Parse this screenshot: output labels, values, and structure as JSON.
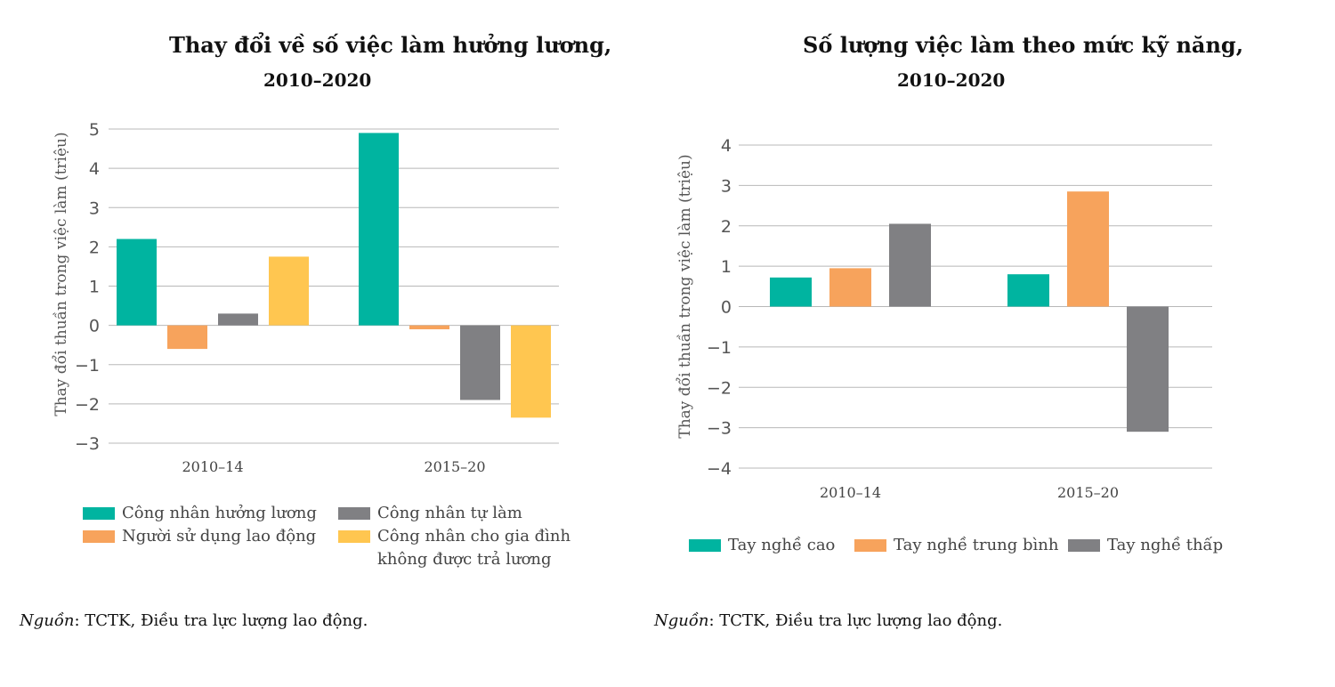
{
  "chart_data": [
    {
      "type": "bar",
      "title": "Thay đổi về số việc làm hưởng lương,",
      "subtitle": "2010–2020",
      "ylabel": "Thay đổi thuần trong việc làm (triệu)",
      "xlabel": "",
      "categories": [
        "2010–14",
        "2015–20"
      ],
      "ylim": [
        -3,
        5
      ],
      "yticks": [
        "−3",
        "−2",
        "−1",
        "0",
        "1",
        "2",
        "3",
        "4",
        "5"
      ],
      "ytick_values": [
        -3,
        -2,
        -1,
        0,
        1,
        2,
        3,
        4,
        5
      ],
      "grid": true,
      "legend_position": "bottom",
      "series": [
        {
          "name": "Công nhân hưởng lương",
          "color": "#00b4a0",
          "values": [
            2.2,
            4.9
          ]
        },
        {
          "name": "Người sử dụng lao động",
          "color": "#f7a35c",
          "values": [
            -0.6,
            -0.1
          ]
        },
        {
          "name": "Công nhân tự làm",
          "color": "#808083",
          "values": [
            0.3,
            -1.9
          ]
        },
        {
          "name": "Công nhân cho gia đình",
          "name_line2": "không được trả lương",
          "color": "#ffc650",
          "values": [
            1.75,
            -2.35
          ]
        }
      ]
    },
    {
      "type": "bar",
      "title": "Số lượng việc làm theo mức kỹ năng,",
      "subtitle": "2010–2020",
      "ylabel": "Thay đổi thuần trong việc làm (triệu)",
      "xlabel": "",
      "categories": [
        "2010–14",
        "2015–20"
      ],
      "ylim": [
        -4,
        4
      ],
      "yticks": [
        "−4",
        "−3",
        "−2",
        "−1",
        "0",
        "1",
        "2",
        "3",
        "4"
      ],
      "ytick_values": [
        -4,
        -3,
        -2,
        -1,
        0,
        1,
        2,
        3,
        4
      ],
      "grid": true,
      "legend_position": "bottom",
      "series": [
        {
          "name": "Tay nghề cao",
          "color": "#00b4a0",
          "values": [
            0.72,
            0.8
          ]
        },
        {
          "name": "Tay nghề trung bình",
          "color": "#f7a35c",
          "values": [
            0.95,
            2.85
          ]
        },
        {
          "name": "Tay nghề thấp",
          "color": "#808083",
          "values": [
            2.05,
            -3.1
          ]
        }
      ]
    }
  ],
  "sources": [
    {
      "prefix": "Nguồn",
      "text": ": TCTK, Điều tra lực lượng lao động."
    },
    {
      "prefix": "Nguồn",
      "text": ": TCTK, Điều tra lực lượng lao động."
    }
  ]
}
